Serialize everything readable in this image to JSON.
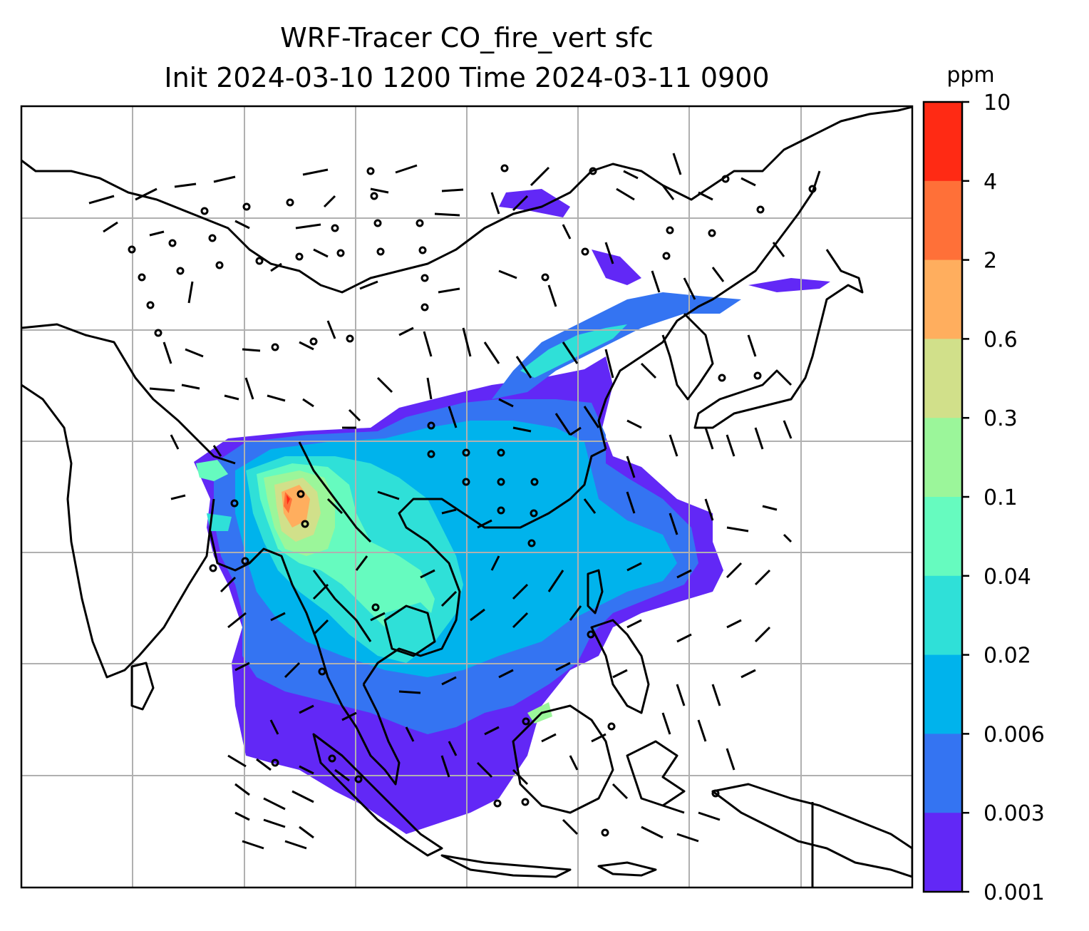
{
  "title": {
    "line1": "WRF-Tracer CO_fire_vert sfc",
    "line2": "Init 2024-03-10 1200 Time 2024-03-11 0900"
  },
  "colorbar": {
    "unit": "ppm",
    "ticks": [
      "10",
      "4",
      "2",
      "0.6",
      "0.3",
      "0.1",
      "0.04",
      "0.02",
      "0.006",
      "0.003",
      "0.001"
    ],
    "colors": [
      "#ff2a14",
      "#ff7038",
      "#ffae5e",
      "#d1e08a",
      "#9bf69a",
      "#66fbbf",
      "#2fe0d8",
      "#00b3ec",
      "#3474f2",
      "#6228f6"
    ]
  },
  "map": {
    "field": "CO_fire_vert",
    "level": "sfc",
    "gridlines": true,
    "coastlines": true,
    "wind_barbs": true
  }
}
